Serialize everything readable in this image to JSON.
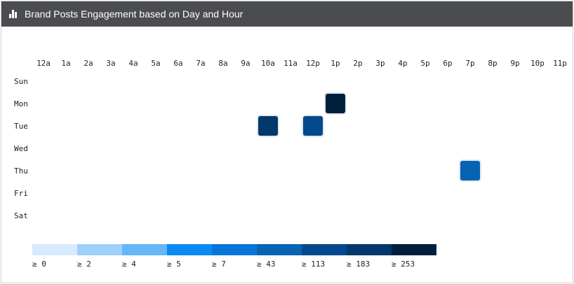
{
  "panel": {
    "title": "Brand Posts Engagement based on Day and Hour",
    "icon": "bar-chart-icon"
  },
  "chart_data": {
    "type": "heatmap",
    "title": "Brand Posts Engagement based on Day and Hour",
    "x_labels": [
      "12a",
      "1a",
      "2a",
      "3a",
      "4a",
      "5a",
      "6a",
      "7a",
      "8a",
      "9a",
      "10a",
      "11a",
      "12p",
      "1p",
      "2p",
      "3p",
      "4p",
      "5p",
      "6p",
      "7p",
      "8p",
      "9p",
      "10p",
      "11p"
    ],
    "y_labels": [
      "Sun",
      "Mon",
      "Tue",
      "Wed",
      "Thu",
      "Fri",
      "Sat"
    ],
    "cells": [
      {
        "day": "Mon",
        "hour": "1p",
        "value": 253
      },
      {
        "day": "Tue",
        "hour": "10a",
        "value": 183
      },
      {
        "day": "Tue",
        "hour": "12p",
        "value": 113
      },
      {
        "day": "Thu",
        "hour": "7p",
        "value": 43
      }
    ],
    "legend": {
      "thresholds": [
        0,
        2,
        4,
        5,
        7,
        43,
        113,
        183,
        253
      ],
      "labels": [
        "≥ 0",
        "≥ 2",
        "≥ 4",
        "≥ 5",
        "≥ 7",
        "≥ 43",
        "≥ 113",
        "≥ 183",
        "≥ 253"
      ],
      "colors": [
        "#d6eafd",
        "#9fd0fc",
        "#66b6f8",
        "#0a8af5",
        "#0576d9",
        "#0663b4",
        "#02498d",
        "#03386a",
        "#001f3d"
      ]
    }
  }
}
